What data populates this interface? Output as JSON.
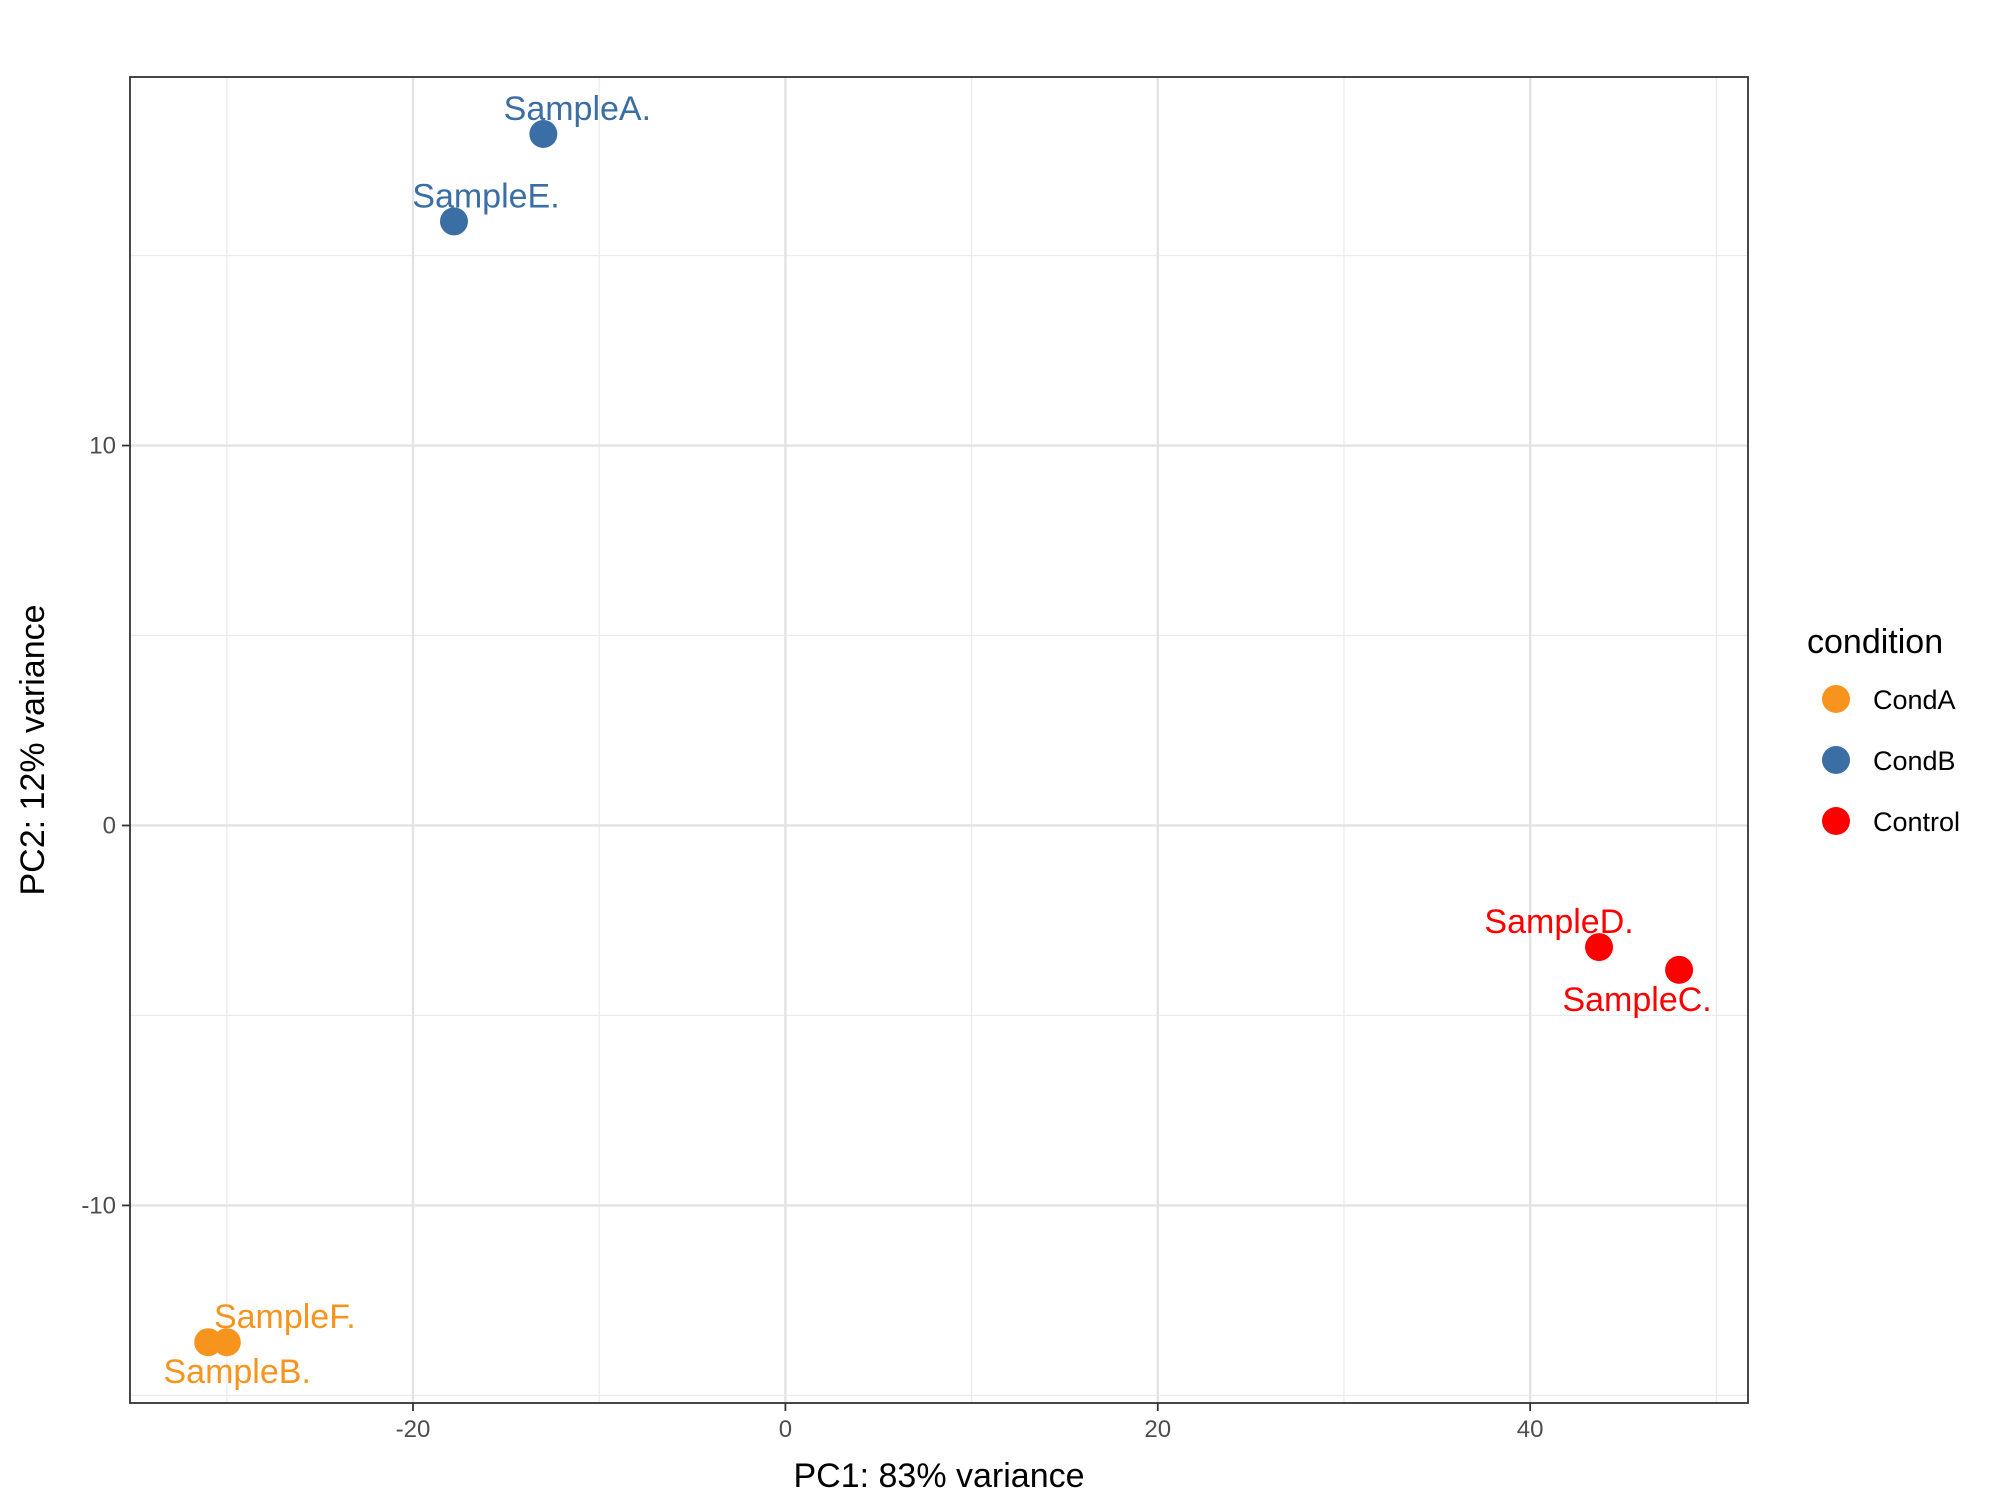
{
  "chart_data": {
    "type": "scatter",
    "title": "",
    "xlabel": "PC1: 83% variance",
    "ylabel": "PC2: 12% variance",
    "xlim": [
      -35.2,
      51.7
    ],
    "ylim": [
      -15.2,
      19.7
    ],
    "x_ticks": [
      -20,
      0,
      20,
      40
    ],
    "y_ticks": [
      -10,
      0,
      10
    ],
    "x_tick_labels": [
      "-20",
      "0",
      "20",
      "40"
    ],
    "y_tick_labels": [
      "-10",
      "0",
      "10"
    ],
    "grid": true,
    "legend": {
      "title": "condition",
      "position": "right",
      "items": [
        {
          "label": "CondA",
          "color": "#F7941D"
        },
        {
          "label": "CondB",
          "color": "#3A6EA5"
        },
        {
          "label": "Control",
          "color": "#FF0000"
        }
      ]
    },
    "points": [
      {
        "label": "SampleA.",
        "condition": "CondB",
        "x": -13.0,
        "y": 18.2
      },
      {
        "label": "SampleE.",
        "condition": "CondB",
        "x": -17.8,
        "y": 15.9
      },
      {
        "label": "SampleF.",
        "condition": "CondA",
        "x": -30.0,
        "y": -13.6
      },
      {
        "label": "SampleB.",
        "condition": "CondA",
        "x": -31.0,
        "y": -13.6
      },
      {
        "label": "SampleD.",
        "condition": "Control",
        "x": 43.7,
        "y": -3.2
      },
      {
        "label": "SampleC.",
        "condition": "Control",
        "x": 48.0,
        "y": -3.8
      }
    ]
  }
}
